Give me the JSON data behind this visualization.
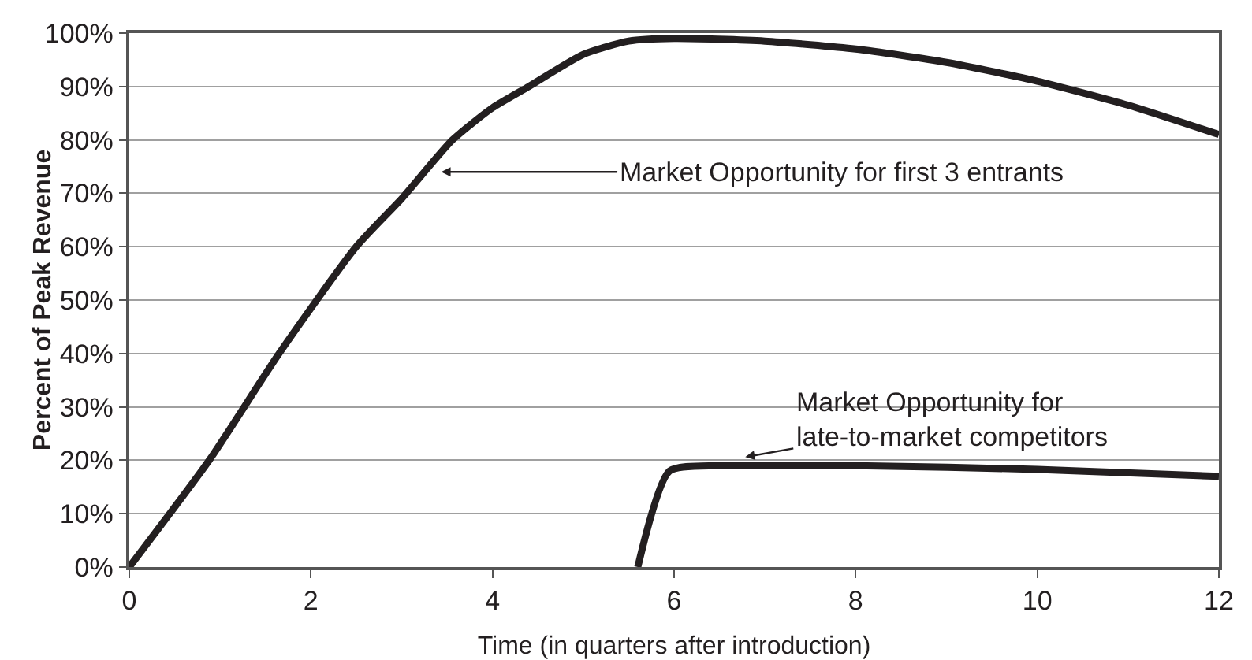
{
  "chart_data": {
    "type": "line",
    "xlabel": "Time (in quarters after introduction)",
    "ylabel": "Percent of Peak Revenue",
    "series": [
      {
        "color": "#231f20",
        "x": [
          0,
          0.88,
          1.65,
          2.5,
          3,
          3.56,
          4,
          4.4,
          5,
          5.5,
          6,
          7,
          8,
          9,
          10,
          11,
          12
        ],
        "values": [
          0,
          20,
          40,
          60,
          69,
          80,
          86,
          90,
          96,
          98.5,
          99,
          98.5,
          97,
          94.5,
          91,
          86.5,
          81
        ]
      },
      {
        "color": "#231f20",
        "x": [
          5.6,
          5.95,
          6.5,
          8,
          10,
          12
        ],
        "values": [
          0,
          18,
          19,
          19,
          18.3,
          17
        ]
      }
    ],
    "xlim": [
      0,
      12
    ],
    "xticks": [
      0,
      2,
      4,
      6,
      8,
      10,
      12
    ],
    "ylim": [
      0,
      100
    ],
    "yticks": [
      {
        "value": 0,
        "label": "0%"
      },
      {
        "value": 10,
        "label": "10%"
      },
      {
        "value": 20,
        "label": "20%"
      },
      {
        "value": 30,
        "label": "30%"
      },
      {
        "value": 40,
        "label": "40%"
      },
      {
        "value": 50,
        "label": "50%"
      },
      {
        "value": 60,
        "label": "60%"
      },
      {
        "value": 70,
        "label": "70%"
      },
      {
        "value": 80,
        "label": "80%"
      },
      {
        "value": 90,
        "label": "90%"
      },
      {
        "value": 100,
        "label": "100%"
      }
    ],
    "grid": "y",
    "marker": "none",
    "line_style": "solid",
    "annotations": [
      {
        "text": "Market Opportunity for first 3 entrants",
        "x": 3.4,
        "y": 74
      },
      {
        "text": "Market Opportunity for\nlate-to-market competitors",
        "x": 6.75,
        "y": 20.5
      }
    ]
  }
}
